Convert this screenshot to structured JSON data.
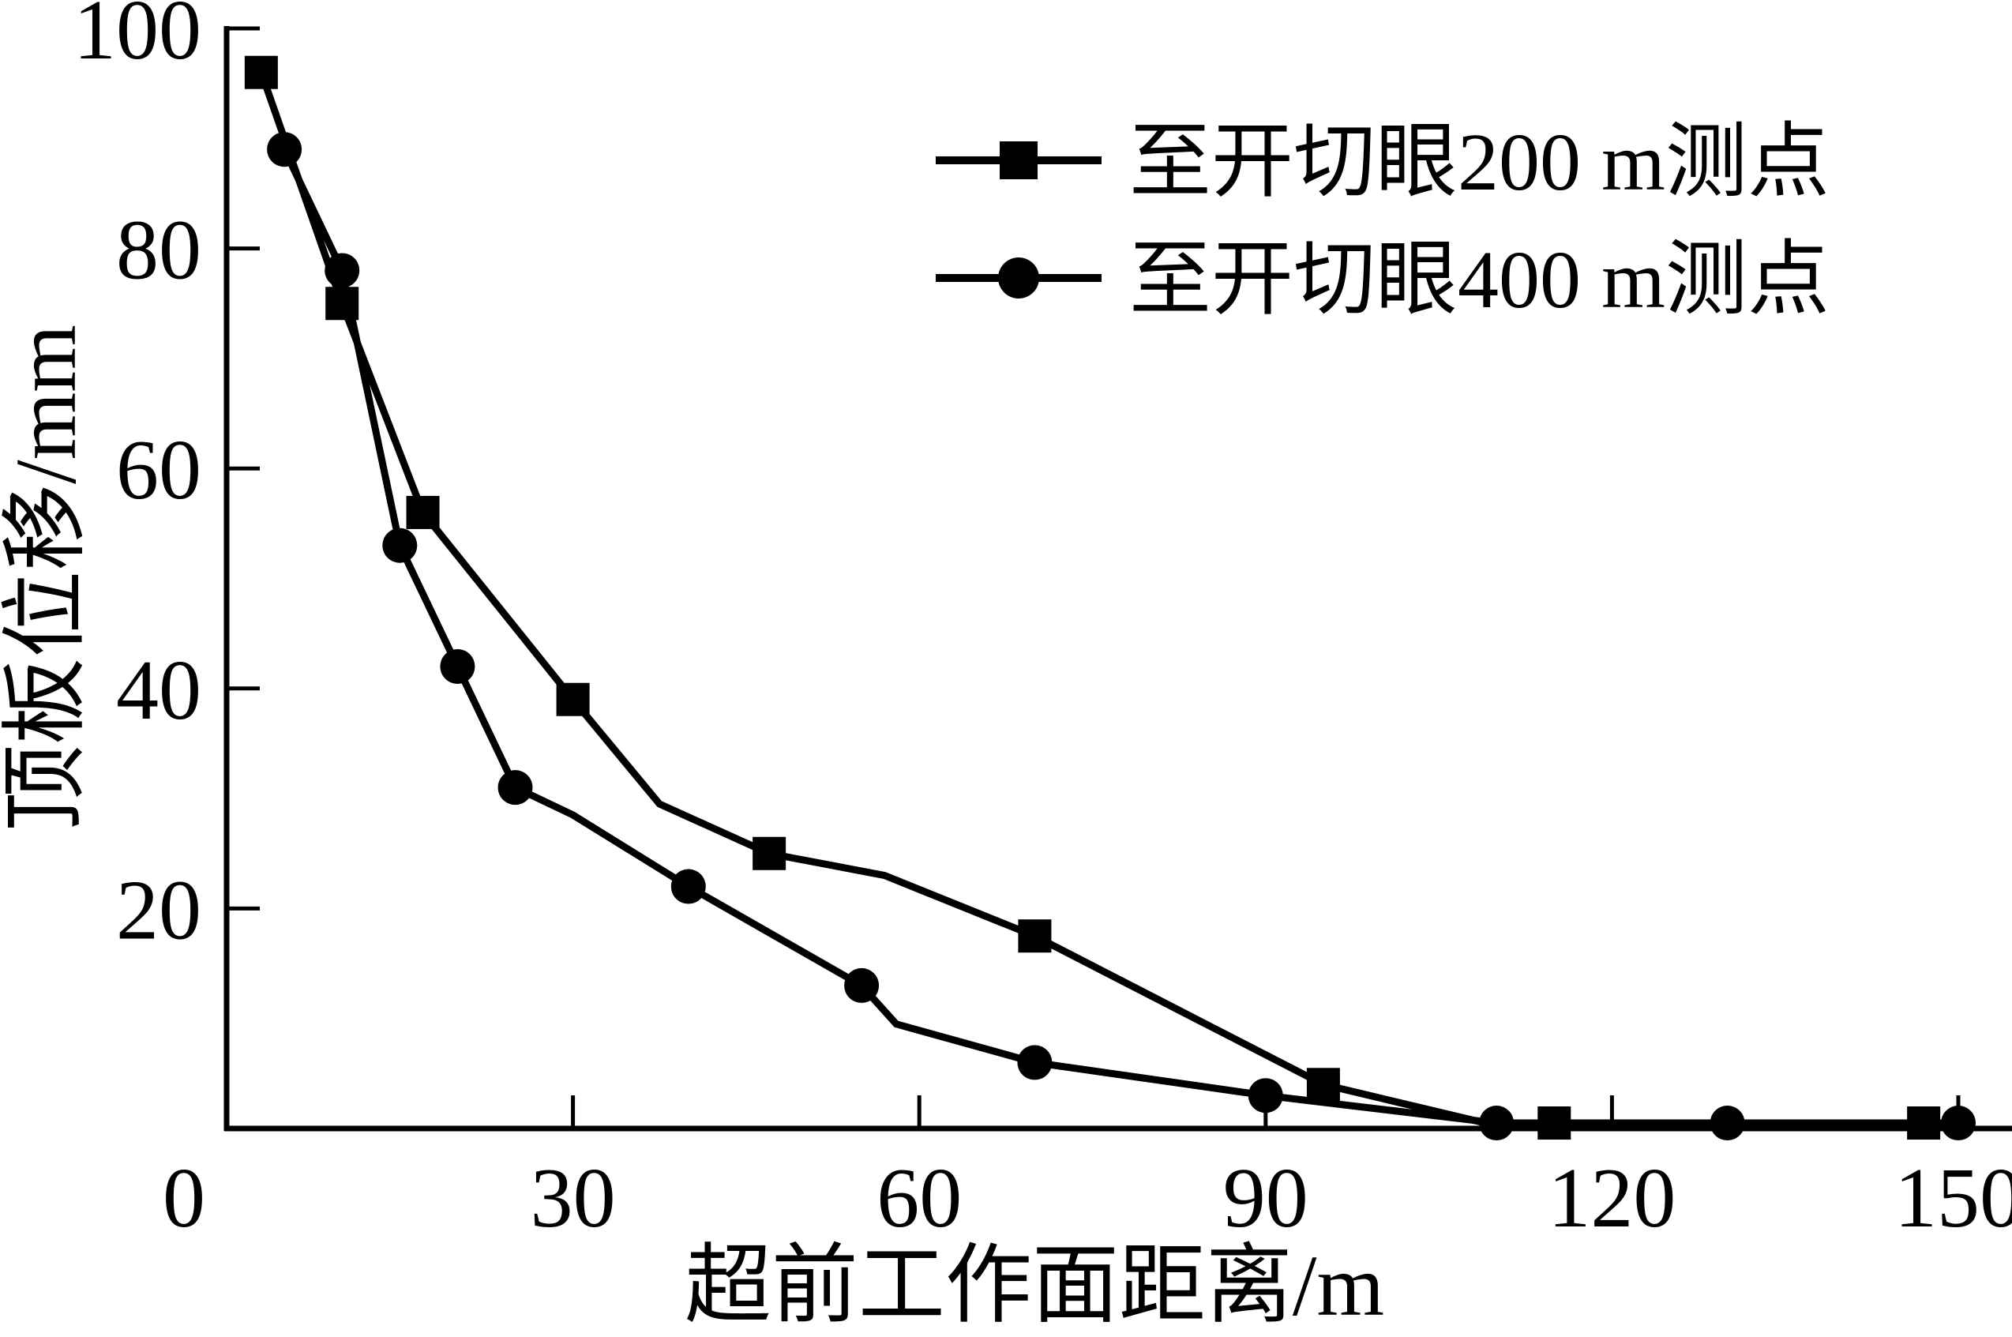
{
  "figure": {
    "background": "#ffffff",
    "ink": "#000000"
  },
  "chart_data": {
    "type": "line",
    "title": "",
    "xlabel": "超前工作面距离/m",
    "ylabel": "顶板位移/mm",
    "xlim": [
      0,
      154
    ],
    "ylim": [
      0,
      100
    ],
    "x_ticks": [
      30,
      60,
      90,
      120,
      150
    ],
    "x_origin_label": "0",
    "y_ticks": [
      20,
      40,
      60,
      80,
      100
    ],
    "grid": false,
    "legend_position": "top-right",
    "series": [
      {
        "name": "至开切眼200 m测点",
        "marker": "square",
        "points": [
          [
            3,
            96
          ],
          [
            10,
            75
          ],
          [
            17,
            56
          ],
          [
            30,
            39
          ],
          [
            47,
            25
          ],
          [
            70,
            17.5
          ],
          [
            95,
            4
          ],
          [
            115,
            0.5
          ],
          [
            147,
            0.5
          ]
        ],
        "line_vertices": [
          [
            3,
            96
          ],
          [
            10,
            75
          ],
          [
            17,
            56
          ],
          [
            30,
            39
          ],
          [
            37.5,
            29.5
          ],
          [
            47,
            25
          ],
          [
            57,
            23
          ],
          [
            70,
            17.5
          ],
          [
            95,
            4
          ],
          [
            109,
            0.5
          ],
          [
            115,
            0.5
          ],
          [
            147,
            0.5
          ]
        ]
      },
      {
        "name": "至开切眼400 m测点",
        "marker": "circle",
        "points": [
          [
            5,
            89
          ],
          [
            10,
            78
          ],
          [
            15,
            53
          ],
          [
            20,
            42
          ],
          [
            25,
            31
          ],
          [
            40,
            22
          ],
          [
            55,
            13
          ],
          [
            70,
            6
          ],
          [
            90,
            3
          ],
          [
            110,
            0.5
          ],
          [
            130,
            0.5
          ],
          [
            150,
            0.5
          ]
        ],
        "line_vertices": [
          [
            5,
            89
          ],
          [
            10,
            78
          ],
          [
            15,
            53
          ],
          [
            20,
            42
          ],
          [
            25,
            31
          ],
          [
            30,
            28.5
          ],
          [
            40,
            22
          ],
          [
            55,
            13
          ],
          [
            58,
            9.5
          ],
          [
            70,
            6
          ],
          [
            90,
            3
          ],
          [
            110,
            0.5
          ],
          [
            130,
            0.5
          ],
          [
            150,
            0.5
          ]
        ]
      }
    ]
  }
}
